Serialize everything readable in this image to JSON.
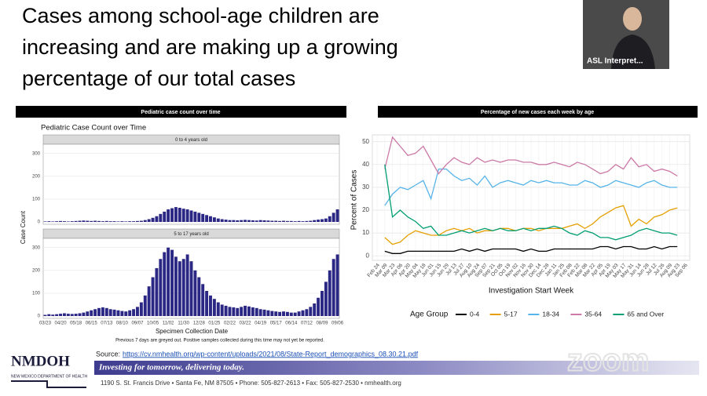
{
  "slide": {
    "title_lines": [
      "Cases among school-age children are",
      "increasing and are making up a growing",
      "percentage of our total cases"
    ],
    "source_label": "Source:",
    "source_url": "https://cv.nmhealth.org/wp-content/uploads/2021/08/State-Report_demographics_08.30.21.pdf",
    "banner": "Investing for tomorrow, delivering today.",
    "address": "1190 S. St. Francis Drive • Santa Fe, NM 87505 • Phone: 505-827-2613 • Fax: 505-827-2530 • nmhealth.org",
    "logo": "NMDOH",
    "logo_sub": "NEW MEXICO DEPARTMENT OF HEALTH"
  },
  "video": {
    "participant": "ASL Interpret...",
    "watermark": "zoom"
  },
  "chart_data": [
    {
      "type": "bar",
      "header": "Pediatric case count over time",
      "title": "Pediatric Case Count over Time",
      "x_label": "Specimen Collection Date",
      "y_label": "Case Count",
      "note": "Previous 7 days are greyed out. Positive samples collected during this time may not yet be reported.",
      "facets": true,
      "categories": [
        "03/23",
        null,
        null,
        null,
        "04/20",
        null,
        null,
        null,
        "05/18",
        null,
        null,
        null,
        "06/15",
        null,
        null,
        null,
        "07/13",
        null,
        null,
        null,
        "08/10",
        null,
        null,
        null,
        "09/07",
        null,
        null,
        null,
        "10/05",
        null,
        null,
        null,
        "11/02",
        null,
        null,
        null,
        "11/30",
        null,
        null,
        null,
        "12/28",
        null,
        null,
        null,
        "01/25",
        null,
        null,
        null,
        "02/22",
        null,
        null,
        null,
        "03/22",
        null,
        null,
        null,
        "04/19",
        null,
        null,
        null,
        "05/17",
        null,
        null,
        null,
        "06/14",
        null,
        null,
        null,
        "07/12",
        null,
        null,
        null,
        "08/09",
        null,
        null,
        null,
        "09/06"
      ],
      "series": [
        {
          "name": "0 to 4 years old",
          "color": "#2b2784",
          "values": [
            2,
            3,
            2,
            3,
            4,
            3,
            2,
            3,
            4,
            5,
            6,
            5,
            4,
            5,
            4,
            3,
            4,
            3,
            3,
            2,
            3,
            2,
            3,
            3,
            4,
            5,
            8,
            12,
            18,
            25,
            35,
            45,
            55,
            60,
            65,
            62,
            58,
            55,
            50,
            45,
            40,
            35,
            30,
            25,
            20,
            15,
            12,
            10,
            8,
            8,
            7,
            8,
            9,
            8,
            7,
            6,
            8,
            7,
            6,
            5,
            5,
            4,
            5,
            4,
            4,
            3,
            4,
            3,
            4,
            5,
            8,
            10,
            12,
            15,
            25,
            40,
            55
          ]
        },
        {
          "name": "5 to 17 years old",
          "color": "#2b2784",
          "values": [
            5,
            8,
            6,
            8,
            10,
            12,
            10,
            9,
            10,
            12,
            15,
            20,
            25,
            30,
            35,
            38,
            35,
            30,
            28,
            25,
            22,
            20,
            25,
            30,
            40,
            60,
            90,
            130,
            170,
            210,
            250,
            280,
            300,
            290,
            260,
            240,
            250,
            270,
            240,
            200,
            170,
            140,
            110,
            90,
            75,
            60,
            50,
            45,
            40,
            38,
            35,
            40,
            45,
            42,
            38,
            35,
            30,
            28,
            25,
            22,
            20,
            18,
            20,
            18,
            15,
            15,
            20,
            25,
            30,
            40,
            55,
            80,
            110,
            150,
            200,
            250,
            270
          ]
        }
      ],
      "ylim": [
        0,
        330
      ],
      "yticks": [
        0,
        100,
        200,
        300
      ],
      "grid": true
    },
    {
      "type": "line",
      "header": "Percentage of new cases each week by age",
      "x_label": "Investigation Start Week",
      "y_label": "Percent of Cases",
      "legend_title": "Age Group",
      "legend": "bottom",
      "categories": [
        "Feb 24",
        "Mar 09",
        "Mar 23",
        "Apr 06",
        "Apr 20",
        "May 04",
        "May 18",
        "Jun 01",
        "Jun 15",
        "Jun 29",
        "Jul 13",
        "Jul 27",
        "Aug 10",
        "Aug 24",
        "Sep 07",
        "Sep 21",
        "Oct 05",
        "Oct 19",
        "Nov 02",
        "Nov 16",
        "Nov 30",
        "Dec 14",
        "Dec 28",
        "Jan 11",
        "Jan 25",
        "Feb 08",
        "Feb 22",
        "Mar 08",
        "Mar 22",
        "Apr 05",
        "Apr 19",
        "May 03",
        "May 17",
        "May 31",
        "Jun 14",
        "Jun 28",
        "Jul 12",
        "Jul 26",
        "Aug 09",
        "Aug 23",
        "Sep 06"
      ],
      "series": [
        {
          "name": "0-4",
          "color": "#000000",
          "values": [
            null,
            2,
            1,
            1,
            2,
            2,
            2,
            2,
            2,
            2,
            2,
            3,
            2,
            3,
            2,
            3,
            3,
            3,
            3,
            2,
            3,
            2,
            2,
            3,
            3,
            3,
            3,
            3,
            3,
            4,
            4,
            3,
            4,
            4,
            3,
            3,
            4,
            3,
            4,
            4,
            null
          ]
        },
        {
          "name": "5-17",
          "color": "#E69F00",
          "values": [
            null,
            8,
            5,
            6,
            9,
            11,
            10,
            9,
            9,
            11,
            12,
            11,
            12,
            10,
            11,
            11,
            12,
            12,
            11,
            12,
            12,
            11,
            12,
            12,
            12,
            13,
            14,
            12,
            14,
            17,
            19,
            21,
            22,
            13,
            16,
            14,
            17,
            18,
            20,
            21,
            null
          ]
        },
        {
          "name": "18-34",
          "color": "#56B4E9",
          "values": [
            null,
            22,
            27,
            30,
            29,
            31,
            33,
            25,
            38,
            38,
            35,
            33,
            34,
            31,
            35,
            30,
            32,
            33,
            32,
            31,
            33,
            32,
            33,
            32,
            32,
            31,
            31,
            33,
            32,
            30,
            31,
            33,
            32,
            31,
            30,
            32,
            33,
            31,
            30,
            30,
            null
          ]
        },
        {
          "name": "35-64",
          "color": "#CC79A7",
          "values": [
            null,
            38,
            52,
            48,
            44,
            45,
            48,
            42,
            36,
            40,
            43,
            41,
            40,
            43,
            41,
            42,
            41,
            42,
            42,
            41,
            41,
            40,
            40,
            41,
            40,
            39,
            41,
            40,
            38,
            36,
            37,
            40,
            38,
            43,
            39,
            40,
            37,
            38,
            37,
            35,
            null
          ]
        },
        {
          "name": "65 and Over",
          "color": "#009E73",
          "values": [
            null,
            40,
            17,
            20,
            17,
            15,
            12,
            13,
            9,
            9,
            10,
            11,
            10,
            11,
            12,
            11,
            12,
            11,
            11,
            12,
            11,
            12,
            12,
            13,
            12,
            10,
            9,
            11,
            10,
            8,
            8,
            7,
            8,
            9,
            11,
            12,
            11,
            10,
            10,
            9,
            null
          ]
        }
      ],
      "ylim": [
        -2,
        53
      ],
      "yticks": [
        0,
        10,
        20,
        30,
        40,
        50
      ],
      "grid": true
    }
  ]
}
